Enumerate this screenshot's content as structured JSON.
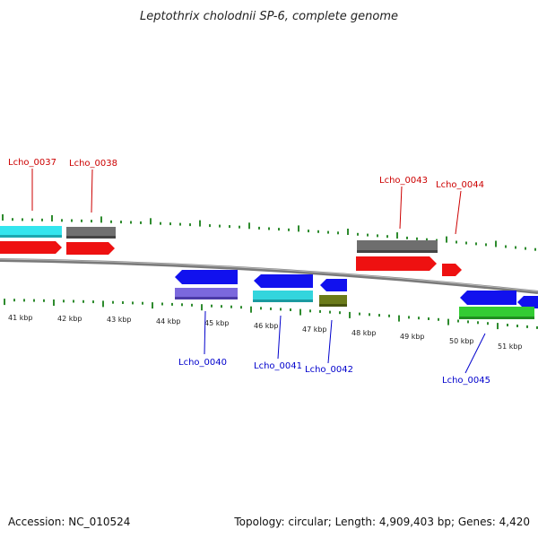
{
  "title": "Leptothrix cholodnii SP-6, complete genome",
  "accession": "Accession: NC_010524",
  "summary": "Topology: circular; Length: 4,909,403 bp; Genes: 4,420",
  "colors": {
    "tick": "#2e8b2e",
    "backbone": "#8c8c8c",
    "label_top": "#cc0000",
    "label_bottom": "#0000cc"
  },
  "kbp_labels": [
    {
      "text": "41 kbp"
    },
    {
      "text": "42 kbp"
    },
    {
      "text": "43 kbp"
    },
    {
      "text": "44 kbp"
    },
    {
      "text": "45 kbp"
    },
    {
      "text": "46 kbp"
    },
    {
      "text": "47 kbp"
    },
    {
      "text": "48 kbp"
    },
    {
      "text": "49 kbp"
    },
    {
      "text": "50 kbp"
    },
    {
      "text": "51 kbp"
    }
  ],
  "gene_labels": [
    {
      "text": "Lcho_0037",
      "strand": "top"
    },
    {
      "text": "Lcho_0038",
      "strand": "top"
    },
    {
      "text": "Lcho_0043",
      "strand": "top"
    },
    {
      "text": "Lcho_0044",
      "strand": "top"
    },
    {
      "text": "Lcho_0040",
      "strand": "bottom"
    },
    {
      "text": "Lcho_0041",
      "strand": "bottom"
    },
    {
      "text": "Lcho_0042",
      "strand": "bottom"
    },
    {
      "text": "Lcho_0045",
      "strand": "bottom"
    }
  ]
}
